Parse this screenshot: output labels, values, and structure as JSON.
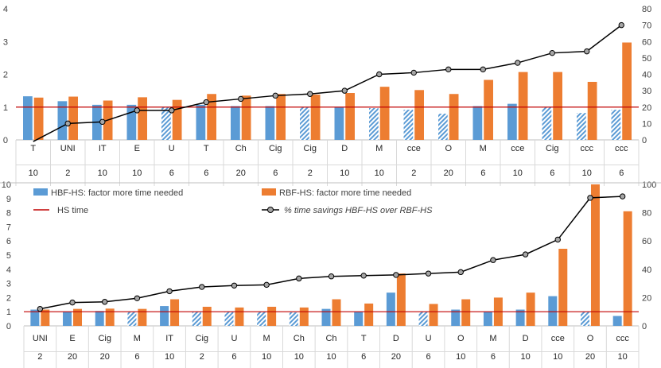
{
  "chart_data": [
    {
      "type": "bar",
      "categories": [
        "T",
        "UNI",
        "IT",
        "E",
        "U",
        "T",
        "Ch",
        "Cig",
        "Cig",
        "D",
        "M",
        "cce",
        "O",
        "M",
        "cce",
        "Cig",
        "ccc",
        "ccc"
      ],
      "sub_categories": [
        "10",
        "2",
        "10",
        "10",
        "6",
        "6",
        "20",
        "6",
        "2",
        "10",
        "10",
        "2",
        "20",
        "6",
        "10",
        "6",
        "10",
        "6"
      ],
      "y_left_ticks": [
        "0",
        "1",
        "2",
        "3",
        "4"
      ],
      "y_right_ticks": [
        "0",
        "10",
        "20",
        "30",
        "40",
        "50",
        "60",
        "70",
        "80"
      ],
      "ylim": [
        0,
        4
      ],
      "y2lim": [
        0,
        80
      ],
      "reference_line": 1,
      "series": [
        {
          "name": "HBF-HS: factor more time needed",
          "kind": "bar",
          "axis": "left",
          "color": "#5b9bd5",
          "values": [
            1.33,
            1.18,
            1.07,
            1.07,
            1.0,
            1.07,
            1.03,
            1.03,
            1.0,
            1.0,
            0.97,
            0.92,
            0.8,
            1.03,
            1.1,
            1.0,
            0.82,
            0.92
          ],
          "hatched": [
            false,
            false,
            false,
            false,
            true,
            false,
            false,
            false,
            true,
            false,
            true,
            true,
            true,
            false,
            false,
            true,
            true,
            true
          ]
        },
        {
          "name": "RBF-HS: factor more time needed",
          "kind": "bar",
          "axis": "left",
          "color": "#ed7d31",
          "values": [
            1.29,
            1.32,
            1.2,
            1.3,
            1.22,
            1.4,
            1.35,
            1.4,
            1.38,
            1.43,
            1.62,
            1.52,
            1.4,
            1.83,
            2.07,
            2.07,
            1.77,
            2.97
          ]
        },
        {
          "name": "HS time",
          "kind": "hline",
          "axis": "left",
          "color": "#c00000"
        },
        {
          "name": "% time savings HBF-HS over RBF-HS",
          "kind": "line",
          "axis": "right",
          "color": "#000000",
          "values": [
            -1,
            10,
            11,
            18,
            18,
            23,
            25,
            27,
            28,
            30,
            40,
            41,
            43,
            43,
            47,
            53,
            54,
            70
          ]
        }
      ]
    },
    {
      "type": "bar",
      "categories": [
        "UNI",
        "E",
        "Cig",
        "M",
        "IT",
        "Cig",
        "U",
        "M",
        "Ch",
        "Ch",
        "T",
        "D",
        "U",
        "O",
        "M",
        "D",
        "cce",
        "O",
        "ccc"
      ],
      "sub_categories": [
        "2",
        "20",
        "20",
        "6",
        "10",
        "2",
        "6",
        "10",
        "10",
        "10",
        "6",
        "20",
        "6",
        "10",
        "6",
        "10",
        "10",
        "20",
        "10"
      ],
      "y_left_ticks": [
        "0",
        "1",
        "2",
        "3",
        "4",
        "5",
        "6",
        "7",
        "8",
        "9",
        "10"
      ],
      "y_right_ticks": [
        "0",
        "20",
        "40",
        "60",
        "80",
        "100"
      ],
      "ylim": [
        0,
        10
      ],
      "y2lim": [
        0,
        100
      ],
      "reference_line": 1,
      "legend": [
        "HBF-HS: factor more time needed",
        "RBF-HS: factor more time needed",
        "HS time",
        "% time savings HBF-HS over RBF-HS"
      ],
      "series": [
        {
          "name": "HBF-HS: factor more time needed",
          "kind": "bar",
          "axis": "left",
          "color": "#5b9bd5",
          "values": [
            1.15,
            1.0,
            1.05,
            0.98,
            1.4,
            1.0,
            1.0,
            1.0,
            0.95,
            1.2,
            1.0,
            2.35,
            1.0,
            1.15,
            1.0,
            1.15,
            2.1,
            1.0,
            0.7
          ],
          "hatched": [
            false,
            false,
            false,
            true,
            false,
            true,
            true,
            true,
            true,
            false,
            false,
            false,
            true,
            false,
            false,
            false,
            false,
            true,
            false
          ]
        },
        {
          "name": "RBF-HS: factor more time needed",
          "kind": "bar",
          "axis": "left",
          "color": "#ed7d31",
          "values": [
            1.15,
            1.2,
            1.22,
            1.2,
            1.88,
            1.35,
            1.3,
            1.35,
            1.3,
            1.88,
            1.58,
            3.7,
            1.55,
            1.88,
            2.0,
            2.35,
            5.45,
            10.0,
            8.1
          ]
        },
        {
          "name": "HS time",
          "kind": "hline",
          "axis": "left",
          "color": "#c00000"
        },
        {
          "name": "% time savings HBF-HS over RBF-HS",
          "kind": "line",
          "axis": "right",
          "color": "#000000",
          "values": [
            12,
            16.5,
            17,
            19.5,
            24.5,
            27.5,
            28.5,
            29,
            33.5,
            35,
            35.5,
            36,
            37,
            38,
            46.5,
            50.5,
            61,
            90.5,
            91.5
          ]
        }
      ]
    }
  ]
}
